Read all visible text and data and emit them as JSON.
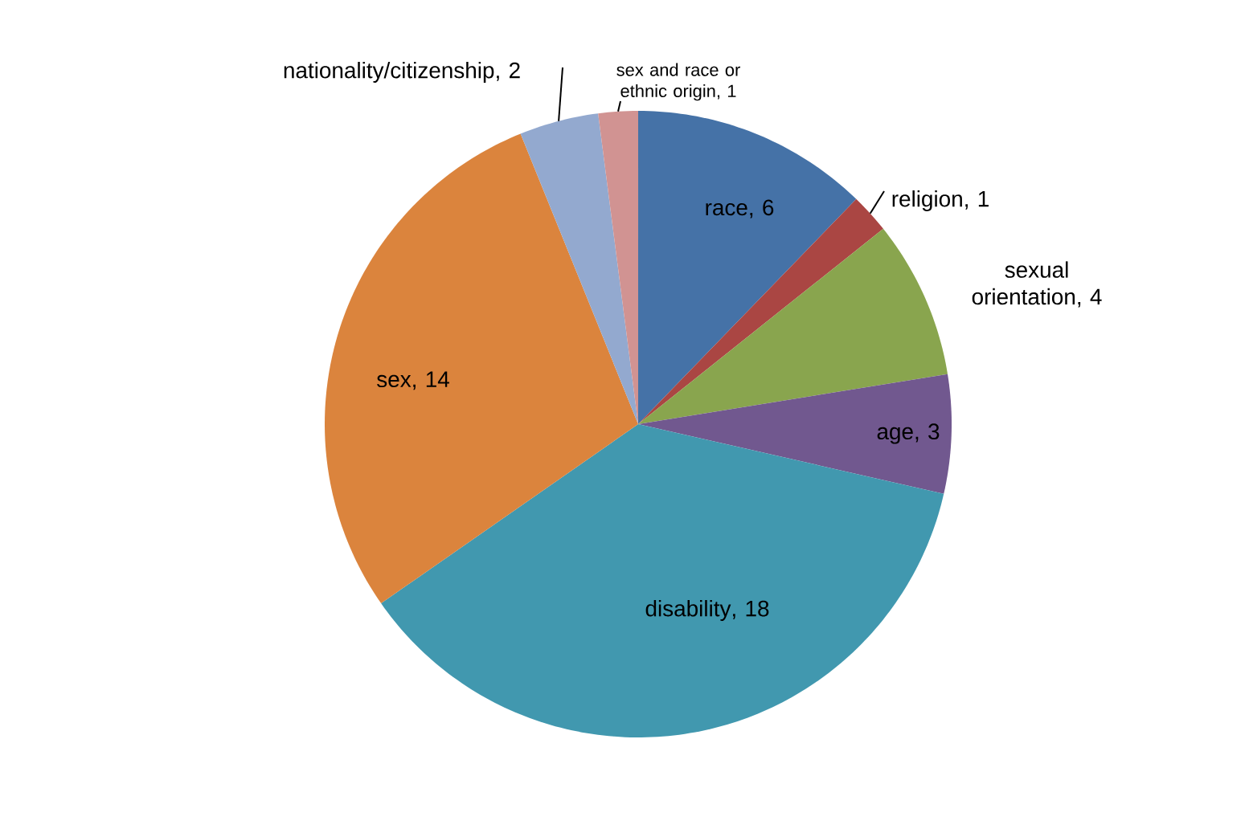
{
  "chart_data": {
    "type": "pie",
    "categories": [
      "race",
      "religion",
      "sexual orientation",
      "age",
      "disability",
      "sex",
      "nationality/citizenship",
      "sex and race or ethnic origin"
    ],
    "values": [
      6,
      1,
      4,
      3,
      18,
      14,
      2,
      1
    ],
    "colors": [
      "#4572a7",
      "#aa4643",
      "#89a54e",
      "#71588f",
      "#4198af",
      "#db843d",
      "#93a9cf",
      "#d19392"
    ],
    "value_labels": [
      ", 6",
      ", 1",
      ", 4",
      ", 3",
      ", 18",
      ", 14",
      ", 2",
      ", 1"
    ]
  }
}
